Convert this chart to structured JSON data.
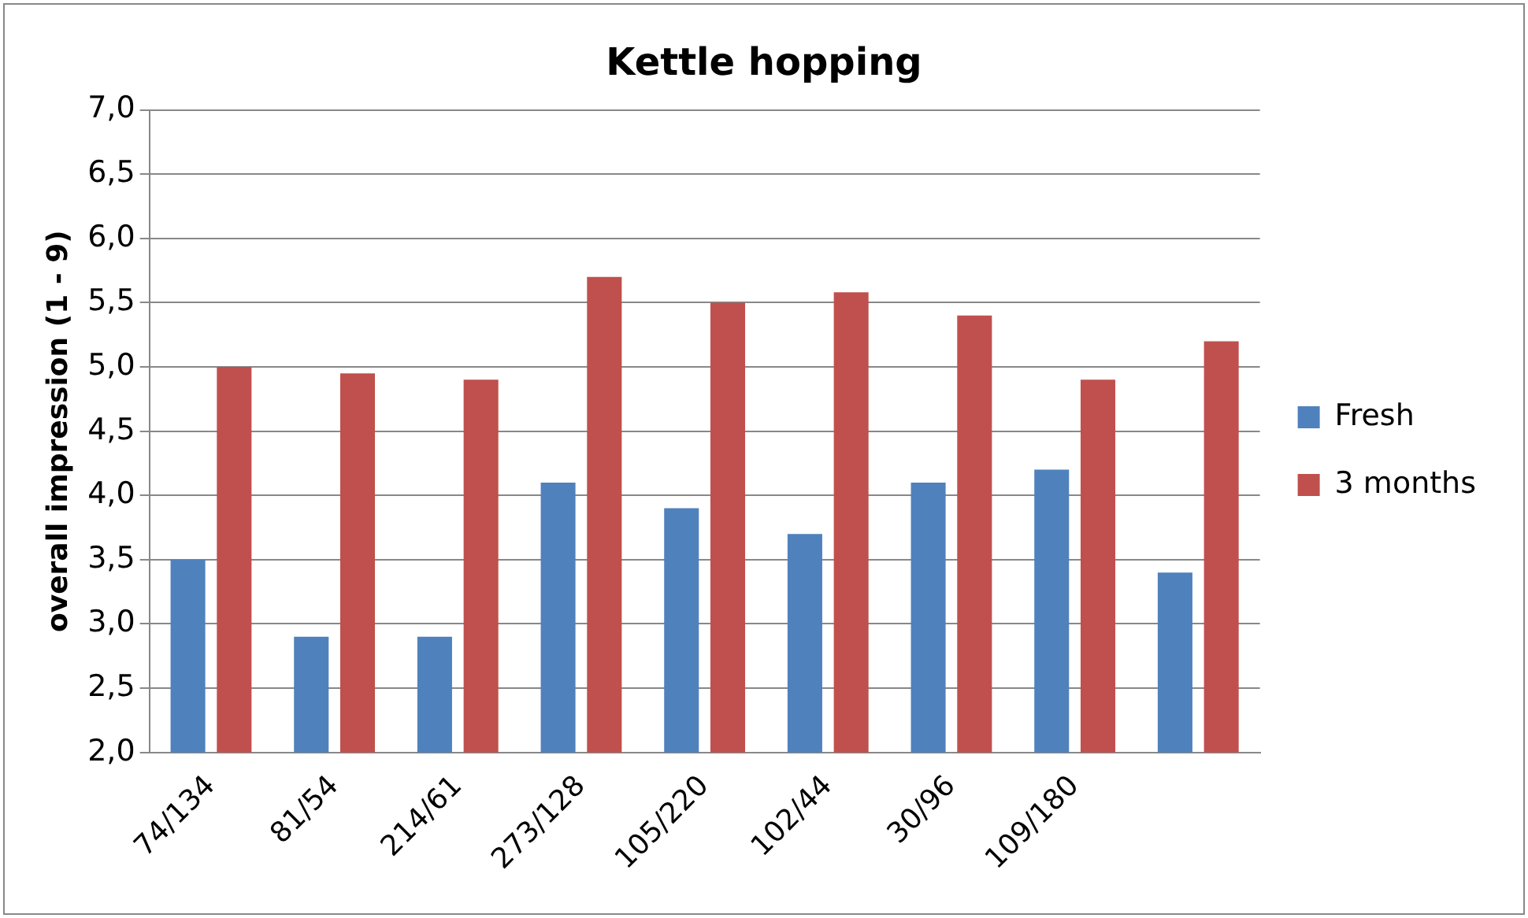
{
  "chart_data": {
    "type": "bar",
    "title": "Kettle hopping",
    "ylabel": "overall impression (1 - 9)",
    "categories": [
      "74/134",
      "81/54",
      "214/61",
      "273/128",
      "105/220",
      "102/44",
      "30/96",
      "109/180",
      null
    ],
    "series": [
      {
        "name": "Fresh",
        "color": "#4f81bd",
        "values": [
          3.5,
          2.9,
          2.9,
          4.1,
          3.9,
          3.7,
          4.1,
          4.2,
          3.4
        ]
      },
      {
        "name": "3 months",
        "color": "#c0504d",
        "values": [
          5.0,
          4.95,
          4.9,
          5.7,
          5.5,
          5.58,
          5.4,
          4.9,
          5.2
        ]
      }
    ],
    "ylim": [
      2,
      7
    ],
    "yticks": [
      {
        "value": 2,
        "label": "2,0"
      },
      {
        "value": 2.5,
        "label": "2,5"
      },
      {
        "value": 3,
        "label": "3,0"
      },
      {
        "value": 3.5,
        "label": "3,5"
      },
      {
        "value": 4,
        "label": "4,0"
      },
      {
        "value": 4.5,
        "label": "4,5"
      },
      {
        "value": 5,
        "label": "5,0"
      },
      {
        "value": 5.5,
        "label": "5,5"
      },
      {
        "value": 6,
        "label": "6,0"
      },
      {
        "value": 6.5,
        "label": "6,5"
      },
      {
        "value": 7,
        "label": "7,0"
      }
    ],
    "grid": "y",
    "legend": "right"
  }
}
